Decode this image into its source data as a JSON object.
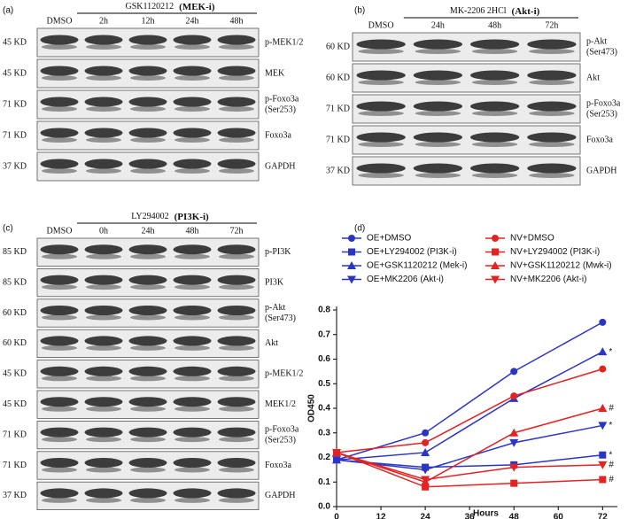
{
  "panels": [
    {
      "label": "(a)",
      "treatment": "GSK1120212",
      "inhibitor": "(MEK-i)",
      "lanes": [
        "DMSO",
        "2h",
        "12h",
        "24h",
        "48h"
      ],
      "rows": [
        {
          "kd": "45 KD",
          "protein": [
            "p-MEK1/2"
          ]
        },
        {
          "kd": "45 KD",
          "protein": [
            "MEK"
          ]
        },
        {
          "kd": "71 KD",
          "protein": [
            "p-Foxo3a",
            "(Ser253)"
          ]
        },
        {
          "kd": "71 KD",
          "protein": [
            "Foxo3a"
          ]
        },
        {
          "kd": "37 KD",
          "protein": [
            "GAPDH"
          ]
        }
      ]
    },
    {
      "label": "(b)",
      "treatment": "MK-2206 2HCl",
      "inhibitor": "(Akt-i)",
      "lanes": [
        "DMSO",
        "24h",
        "48h",
        "72h"
      ],
      "rows": [
        {
          "kd": "60 KD",
          "protein": [
            "p-Akt",
            "(Ser473)"
          ]
        },
        {
          "kd": "60 KD",
          "protein": [
            "Akt"
          ]
        },
        {
          "kd": "71 KD",
          "protein": [
            "p-Foxo3a",
            "(Ser253)"
          ]
        },
        {
          "kd": "71 KD",
          "protein": [
            "Foxo3a"
          ]
        },
        {
          "kd": "37 KD",
          "protein": [
            "GAPDH"
          ]
        }
      ]
    },
    {
      "label": "(c)",
      "treatment": "LY294002",
      "inhibitor": "(PI3K-i)",
      "lanes": [
        "DMSO",
        "0h",
        "24h",
        "48h",
        "72h"
      ],
      "rows": [
        {
          "kd": "85 KD",
          "protein": [
            "p-PI3K"
          ]
        },
        {
          "kd": "85 KD",
          "protein": [
            "PI3K"
          ]
        },
        {
          "kd": "60 KD",
          "protein": [
            "p-Akt",
            "(Ser473)"
          ]
        },
        {
          "kd": "60 KD",
          "protein": [
            "Akt"
          ]
        },
        {
          "kd": "45 KD",
          "protein": [
            "p-MEK1/2"
          ]
        },
        {
          "kd": "45 KD",
          "protein": [
            "MEK1/2"
          ]
        },
        {
          "kd": "71 KD",
          "protein": [
            "p-Foxo3a",
            "(Ser253)"
          ]
        },
        {
          "kd": "71 KD",
          "protein": [
            "Foxo3a"
          ]
        },
        {
          "kd": "37 KD",
          "protein": [
            "GAPDH"
          ]
        }
      ]
    }
  ],
  "chart_data": {
    "type": "line",
    "label": "(d)",
    "xlabel": "Hours",
    "ylabel": "OD450",
    "x": [
      0,
      24,
      48,
      72
    ],
    "xlim": [
      0,
      76
    ],
    "xticks": [
      0,
      12,
      24,
      36,
      48,
      60,
      72
    ],
    "ylim": [
      0,
      0.8
    ],
    "yticks": [
      {
        "value": 0,
        "label": "0.0"
      },
      {
        "value": 0.1,
        "label": "0.1"
      },
      {
        "value": 0.2,
        "label": "0.2"
      },
      {
        "value": 0.3,
        "label": "0.3"
      },
      {
        "value": 0.4,
        "label": "0.4"
      },
      {
        "value": 0.5,
        "label": "0.5"
      },
      {
        "value": 0.6,
        "label": "0.6"
      },
      {
        "value": 0.7,
        "label": "0.7"
      },
      {
        "value": 0.8,
        "label": "0.8"
      }
    ],
    "series": [
      {
        "name": "OE+DMSO",
        "color": "#2b35c4",
        "marker": "circle",
        "values": [
          0.19,
          0.3,
          0.55,
          0.75
        ]
      },
      {
        "name": "OE+LY294002 (PI3K-i)",
        "color": "#2b35c4",
        "marker": "square",
        "values": [
          0.19,
          0.16,
          0.17,
          0.21
        ],
        "annotation": "*"
      },
      {
        "name": "OE+GSK1120212 (Mek-i)",
        "color": "#2b35c4",
        "marker": "triangle-up",
        "values": [
          0.19,
          0.22,
          0.44,
          0.63
        ],
        "annotation": "*"
      },
      {
        "name": "OE+MK2206 (Akt-i)",
        "color": "#2b35c4",
        "marker": "triangle-down",
        "values": [
          0.19,
          0.15,
          0.26,
          0.33
        ],
        "annotation": "*"
      },
      {
        "name": "NV+DMSO",
        "color": "#e52222",
        "marker": "circle",
        "values": [
          0.22,
          0.26,
          0.45,
          0.56
        ]
      },
      {
        "name": "NV+LY294002 (PI3K-i)",
        "color": "#e52222",
        "marker": "square",
        "values": [
          0.22,
          0.08,
          0.095,
          0.11
        ],
        "annotation": "#"
      },
      {
        "name": "NV+GSK1120212 (Mwk-i)",
        "color": "#e52222",
        "marker": "triangle-up",
        "values": [
          0.22,
          0.1,
          0.3,
          0.4
        ],
        "annotation": "#"
      },
      {
        "name": "NV+MK2206 (Akt-i)",
        "color": "#e52222",
        "marker": "triangle-down",
        "values": [
          0.22,
          0.11,
          0.16,
          0.17
        ],
        "annotation": "#"
      }
    ]
  }
}
